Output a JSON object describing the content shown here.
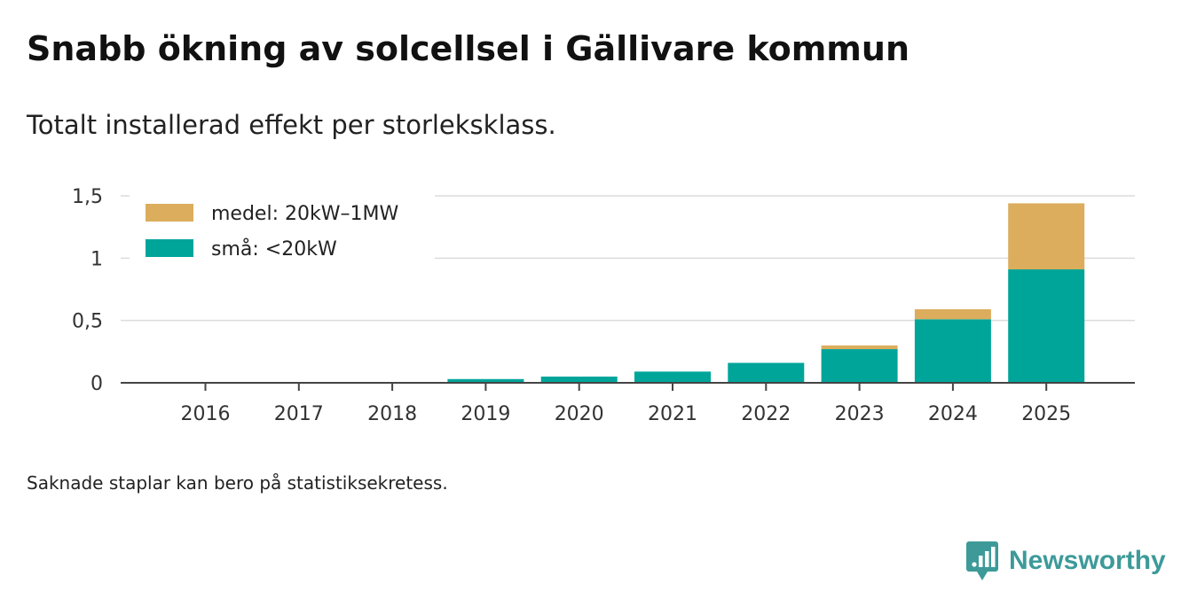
{
  "header": {
    "title": "Snabb ökning av solcellsel i Gällivare kommun",
    "subtitle": "Totalt installerad effekt per storleksklass."
  },
  "footer": {
    "note": "Saknade staplar kan bero på statistiksekretess.",
    "brand": "Newsworthy",
    "brand_icon": "newsworthy-logo-icon"
  },
  "chart_data": {
    "type": "bar",
    "stacked": true,
    "categories": [
      "2016",
      "2017",
      "2018",
      "2019",
      "2020",
      "2021",
      "2022",
      "2023",
      "2024",
      "2025"
    ],
    "series": [
      {
        "name": "små: <20kW",
        "color": "#00a59a",
        "values": [
          0,
          0,
          0,
          0.03,
          0.05,
          0.09,
          0.16,
          0.27,
          0.51,
          0.91
        ]
      },
      {
        "name": "medel: 20kW–1MW",
        "color": "#dbad5c",
        "values": [
          0,
          0,
          0,
          0,
          0,
          0,
          0,
          0.03,
          0.08,
          0.53
        ]
      }
    ],
    "legend_order": [
      "medel: 20kW–1MW",
      "små: <20kW"
    ],
    "legend_position": "top-left",
    "yticks": [
      0,
      0.5,
      1,
      1.5
    ],
    "ytick_labels": [
      "0",
      "0,5",
      "1",
      "1,5"
    ],
    "ylim": [
      0,
      1.5
    ],
    "grid": true
  }
}
